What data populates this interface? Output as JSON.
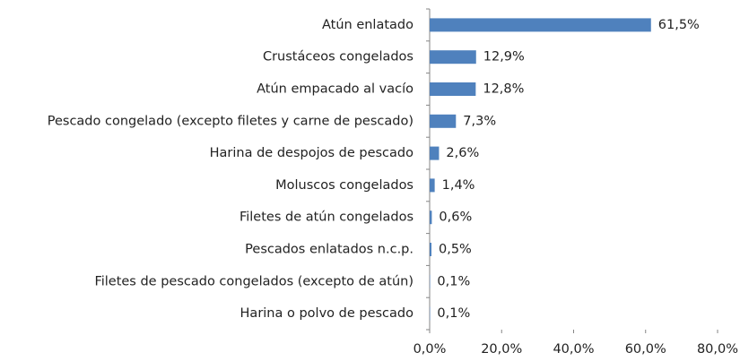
{
  "chart_data": {
    "type": "bar",
    "orientation": "horizontal",
    "categories": [
      "Atún enlatado",
      "Crustáceos congelados",
      "Atún empacado al vacío",
      "Pescado congelado (excepto filetes y carne de pescado)",
      "Harina de despojos de pescado",
      "Moluscos congelados",
      "Filetes de atún congelados",
      "Pescados enlatados n.c.p.",
      "Filetes de pescado congelados (excepto de atún)",
      "Harina o polvo de pescado"
    ],
    "values": [
      61.5,
      12.9,
      12.8,
      7.3,
      2.6,
      1.4,
      0.6,
      0.5,
      0.1,
      0.1
    ],
    "value_labels": [
      "61,5%",
      "12,9%",
      "12,8%",
      "7,3%",
      "2,6%",
      "1,4%",
      "0,6%",
      "0,5%",
      "0,1%",
      "0,1%"
    ],
    "color": "#4f81bd",
    "xlim": [
      0,
      80
    ],
    "xticks": [
      {
        "value": 0,
        "label": "0,0%"
      },
      {
        "value": 20,
        "label": "20,0%"
      },
      {
        "value": 40,
        "label": "40,0%"
      },
      {
        "value": 60,
        "label": "60,0%"
      },
      {
        "value": 80,
        "label": "80,0%"
      }
    ],
    "grid": false
  }
}
